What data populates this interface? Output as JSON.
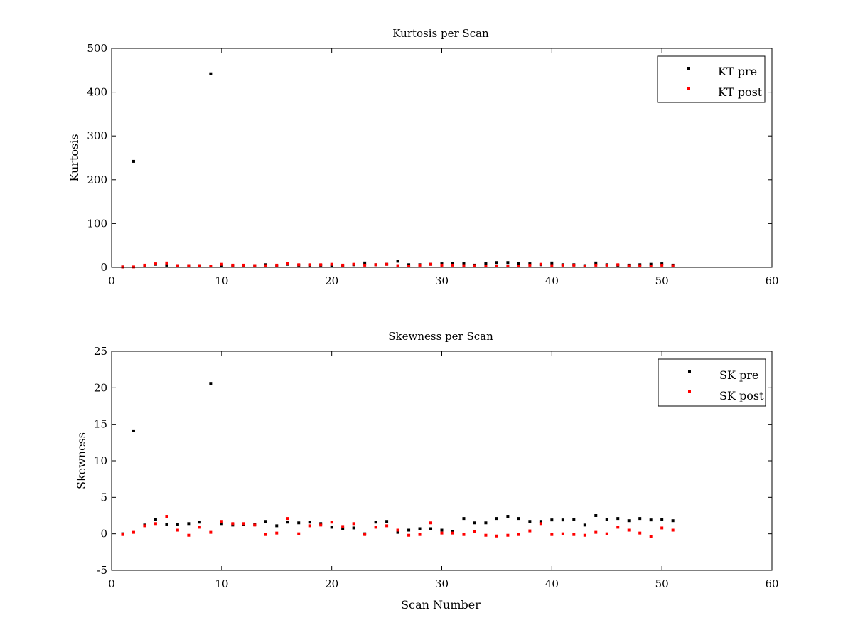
{
  "chart_data": [
    {
      "type": "scatter",
      "title": "Kurtosis per Scan",
      "xlabel": "",
      "ylabel": "Kurtosis",
      "xlim": [
        0,
        60
      ],
      "ylim": [
        0,
        500
      ],
      "xticks": [
        0,
        10,
        20,
        30,
        40,
        50,
        60
      ],
      "yticks": [
        0,
        100,
        200,
        300,
        400,
        500
      ],
      "grid": false,
      "legend_position": "top-right",
      "series": [
        {
          "name": "KT pre",
          "color": "#000000",
          "x": [
            1,
            2,
            3,
            4,
            5,
            6,
            7,
            8,
            9,
            10,
            11,
            12,
            13,
            14,
            15,
            16,
            17,
            18,
            19,
            20,
            21,
            22,
            23,
            24,
            25,
            26,
            27,
            28,
            29,
            30,
            31,
            32,
            33,
            34,
            35,
            36,
            37,
            38,
            39,
            40,
            41,
            42,
            43,
            44,
            45,
            46,
            47,
            48,
            49,
            50,
            51
          ],
          "y": [
            1,
            242,
            4,
            7,
            5,
            4,
            4,
            4,
            442,
            4,
            4,
            4,
            4,
            6,
            4,
            7,
            5,
            5,
            5,
            4,
            4,
            6,
            10,
            6,
            7,
            14,
            6,
            6,
            7,
            8,
            9,
            9,
            5,
            9,
            11,
            11,
            9,
            8,
            6,
            10,
            6,
            6,
            4,
            10,
            6,
            5,
            5,
            6,
            7,
            8,
            5
          ]
        },
        {
          "name": "KT post",
          "color": "#ff0000",
          "x": [
            1,
            2,
            3,
            4,
            5,
            6,
            7,
            8,
            9,
            10,
            11,
            12,
            13,
            14,
            15,
            16,
            17,
            18,
            19,
            20,
            21,
            22,
            23,
            24,
            25,
            26,
            27,
            28,
            29,
            30,
            31,
            32,
            33,
            34,
            35,
            36,
            37,
            38,
            39,
            40,
            41,
            42,
            43,
            44,
            45,
            46,
            47,
            48,
            49,
            50,
            51
          ],
          "y": [
            1,
            1,
            5,
            8,
            10,
            4,
            4,
            4,
            3,
            7,
            5,
            5,
            4,
            4,
            5,
            9,
            6,
            6,
            6,
            7,
            5,
            7,
            5,
            6,
            7,
            4,
            3,
            5,
            7,
            5,
            5,
            4,
            4,
            3,
            3,
            3,
            3,
            5,
            7,
            4,
            5,
            5,
            3,
            5,
            5,
            6,
            4,
            4,
            3,
            5,
            4
          ]
        }
      ]
    },
    {
      "type": "scatter",
      "title": "Skewness per Scan",
      "xlabel": "Scan Number",
      "ylabel": "Skewness",
      "xlim": [
        0,
        60
      ],
      "ylim": [
        -5,
        25
      ],
      "xticks": [
        0,
        10,
        20,
        30,
        40,
        50,
        60
      ],
      "yticks": [
        -5,
        0,
        5,
        10,
        15,
        20,
        25
      ],
      "grid": false,
      "legend_position": "top-right",
      "series": [
        {
          "name": "SK pre",
          "color": "#000000",
          "x": [
            1,
            2,
            3,
            4,
            5,
            6,
            7,
            8,
            9,
            10,
            11,
            12,
            13,
            14,
            15,
            16,
            17,
            18,
            19,
            20,
            21,
            22,
            23,
            24,
            25,
            26,
            27,
            28,
            29,
            30,
            31,
            32,
            33,
            34,
            35,
            36,
            37,
            38,
            39,
            40,
            41,
            42,
            43,
            44,
            45,
            46,
            47,
            48,
            49,
            50,
            51
          ],
          "y": [
            0.0,
            14.1,
            1.2,
            2.0,
            1.3,
            1.3,
            1.4,
            1.6,
            20.6,
            1.4,
            1.2,
            1.3,
            1.3,
            1.7,
            1.1,
            1.6,
            1.5,
            1.6,
            1.4,
            0.9,
            0.7,
            0.8,
            0.0,
            1.6,
            1.7,
            0.2,
            0.5,
            0.7,
            0.7,
            0.5,
            0.3,
            2.1,
            1.5,
            1.5,
            2.1,
            2.4,
            2.1,
            1.7,
            1.7,
            1.9,
            1.9,
            2.0,
            1.2,
            2.5,
            2.0,
            2.1,
            1.8,
            2.1,
            1.9,
            2.0,
            1.8
          ]
        },
        {
          "name": "SK post",
          "color": "#ff0000",
          "x": [
            1,
            2,
            3,
            4,
            5,
            6,
            7,
            8,
            9,
            10,
            11,
            12,
            13,
            14,
            15,
            16,
            17,
            18,
            19,
            20,
            21,
            22,
            23,
            24,
            25,
            26,
            27,
            28,
            29,
            30,
            31,
            32,
            33,
            34,
            35,
            36,
            37,
            38,
            39,
            40,
            41,
            42,
            43,
            44,
            45,
            46,
            47,
            48,
            49,
            50,
            51
          ],
          "y": [
            -0.1,
            0.2,
            1.1,
            1.4,
            2.4,
            0.5,
            -0.2,
            0.9,
            0.2,
            1.7,
            1.4,
            1.4,
            1.2,
            -0.1,
            0.1,
            2.1,
            0.0,
            1.1,
            1.2,
            1.6,
            1.0,
            1.4,
            -0.1,
            0.9,
            1.1,
            0.5,
            -0.2,
            -0.1,
            1.5,
            0.1,
            0.1,
            -0.1,
            0.3,
            -0.2,
            -0.3,
            -0.2,
            -0.1,
            0.4,
            1.4,
            -0.1,
            0.0,
            -0.1,
            -0.2,
            0.2,
            0.0,
            0.9,
            0.5,
            0.1,
            -0.4,
            0.8,
            0.5
          ]
        }
      ]
    }
  ]
}
